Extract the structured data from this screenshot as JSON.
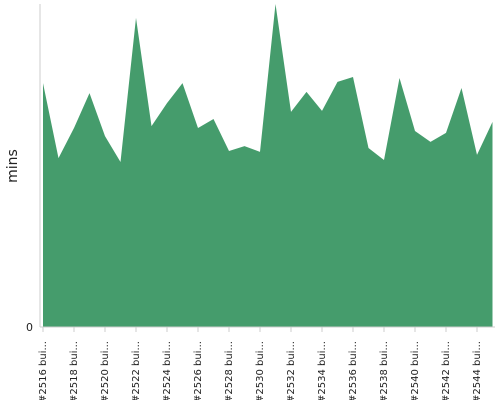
{
  "chart_data": {
    "type": "area",
    "y_label": "mins",
    "categories": [
      "#2516 bui...",
      null,
      "#2518 bui...",
      null,
      "#2520 bui...",
      null,
      "#2522 bui...",
      null,
      "#2524 bui...",
      null,
      "#2526 bui...",
      null,
      "#2528 bui...",
      null,
      "#2530 bui...",
      null,
      "#2532 bui...",
      null,
      "#2534 bui...",
      null,
      "#2536 bui...",
      null,
      "#2538 bui...",
      null,
      "#2540 bui...",
      null,
      "#2542 bui...",
      null,
      "#2544 bui...",
      null
    ],
    "series": [
      {
        "color": "#459c6c",
        "values": [
          75.5,
          52.3,
          61.6,
          72.4,
          59.1,
          51.1,
          95.7,
          62.2,
          69.3,
          75.5,
          61.6,
          64.4,
          54.5,
          56.0,
          54.2,
          100,
          66.6,
          72.8,
          66.9,
          75.9,
          77.4,
          55.4,
          51.7,
          77.1,
          60.7,
          57.3,
          60.1,
          74.0,
          53.3,
          63.5
        ]
      }
    ],
    "ylim": [
      0,
      100
    ],
    "yticks": [
      0
    ]
  }
}
